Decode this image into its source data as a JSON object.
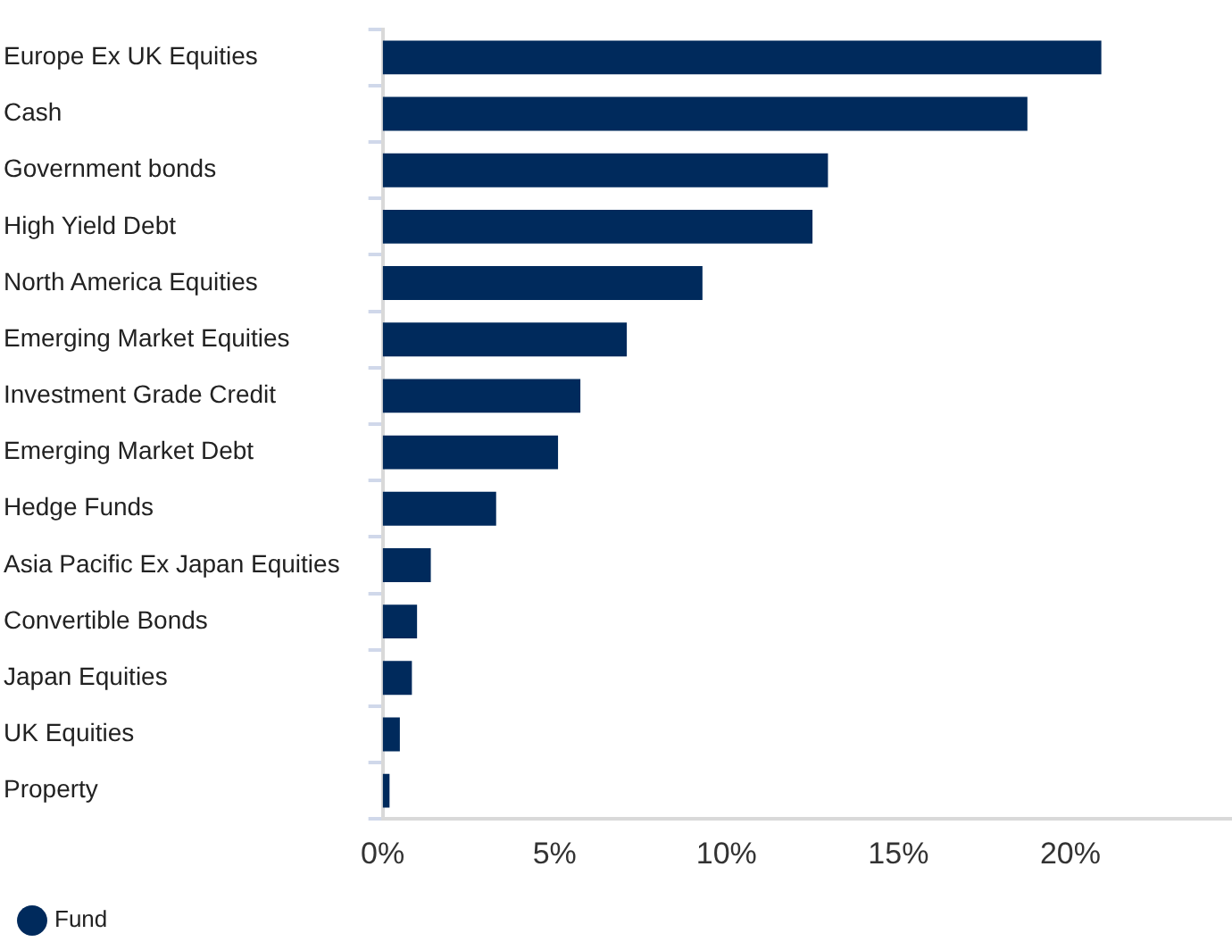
{
  "chart_data": {
    "type": "bar",
    "orientation": "horizontal",
    "categories": [
      "Europe Ex UK Equities",
      "Cash",
      "Government bonds",
      "High Yield Debt",
      "North America Equities",
      "Emerging Market Equities",
      "Investment Grade Credit",
      "Emerging Market Debt",
      "Hedge Funds",
      "Asia Pacific Ex Japan Equities",
      "Convertible Bonds",
      "Japan Equities",
      "UK Equities",
      "Property"
    ],
    "series": [
      {
        "name": "Fund",
        "color": "#002a5c",
        "values": [
          20.9,
          18.75,
          12.95,
          12.5,
          9.3,
          7.1,
          5.75,
          5.1,
          3.3,
          1.4,
          1.0,
          0.85,
          0.5,
          0.2
        ]
      }
    ],
    "xlim": [
      0,
      24.7
    ],
    "xticks": [
      {
        "value": 0,
        "label": "0%"
      },
      {
        "value": 5,
        "label": "5%"
      },
      {
        "value": 10,
        "label": "10%"
      },
      {
        "value": 15,
        "label": "15%"
      },
      {
        "value": 20,
        "label": "20%"
      }
    ],
    "grid": false,
    "legend": "bottom left"
  }
}
